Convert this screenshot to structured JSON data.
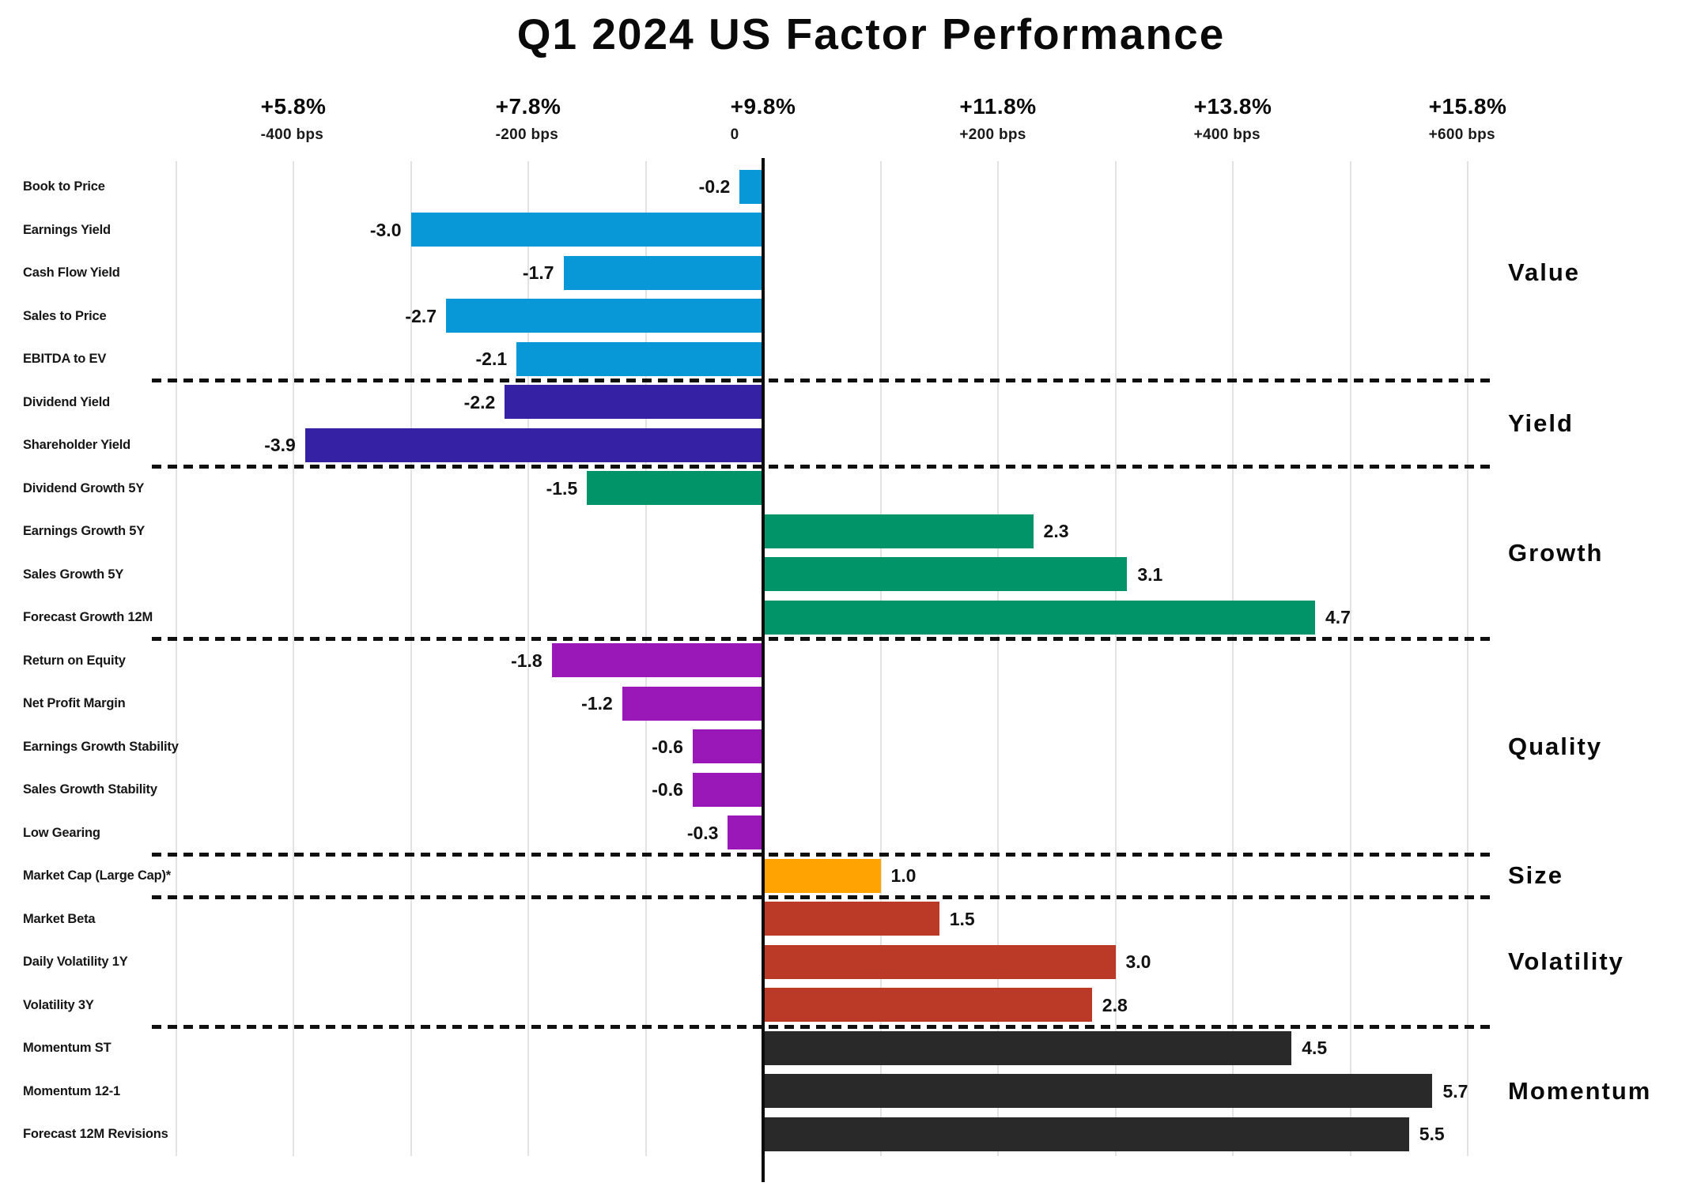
{
  "chart_data": {
    "type": "bar",
    "orientation": "horizontal",
    "title": "Q1 2024 US Factor Performance",
    "x_axis": {
      "ticks": [
        {
          "value": -4,
          "pct": "+5.8%",
          "bps": "-400 bps"
        },
        {
          "value": -2,
          "pct": "+7.8%",
          "bps": "-200 bps"
        },
        {
          "value": 0,
          "pct": "+9.8%",
          "bps": "0"
        },
        {
          "value": 2,
          "pct": "+11.8%",
          "bps": "+200 bps"
        },
        {
          "value": 4,
          "pct": "+13.8%",
          "bps": "+400 bps"
        },
        {
          "value": 6,
          "pct": "+15.8%",
          "bps": "+600 bps"
        }
      ],
      "gridline_values": [
        -5,
        -4,
        -3,
        -2,
        -1,
        1,
        2,
        3,
        4,
        5,
        6
      ],
      "bps_per_unit": 100,
      "range_units": [
        -5,
        6
      ]
    },
    "grid": "vertical light gridlines every 100 bps, solid black zero axis",
    "group_labels_position": "right",
    "group_separator_style": "black dashed horizontal lines between factor groups",
    "groups": [
      {
        "label": "Value",
        "color": "#0998d7",
        "rows": [
          {
            "label": "Book to Price",
            "value": -0.2
          },
          {
            "label": "Earnings Yield",
            "value": -3.0
          },
          {
            "label": "Cash Flow Yield",
            "value": -1.7
          },
          {
            "label": "Sales to Price",
            "value": -2.7
          },
          {
            "label": "EBITDA to EV",
            "value": -2.1
          }
        ]
      },
      {
        "label": "Yield",
        "color": "#3521a4",
        "rows": [
          {
            "label": "Dividend Yield",
            "value": -2.2
          },
          {
            "label": "Shareholder Yield",
            "value": -3.9
          }
        ]
      },
      {
        "label": "Growth",
        "color": "#009468",
        "rows": [
          {
            "label": "Dividend Growth 5Y",
            "value": -1.5
          },
          {
            "label": "Earnings Growth 5Y",
            "value": 2.3
          },
          {
            "label": "Sales Growth 5Y",
            "value": 3.1
          },
          {
            "label": "Forecast Growth 12M",
            "value": 4.7
          }
        ]
      },
      {
        "label": "Quality",
        "color": "#9a18b8",
        "rows": [
          {
            "label": "Return on Equity",
            "value": -1.8
          },
          {
            "label": "Net Profit Margin",
            "value": -1.2
          },
          {
            "label": "Earnings Growth Stability",
            "value": -0.6
          },
          {
            "label": "Sales Growth Stability",
            "value": -0.6
          },
          {
            "label": "Low Gearing",
            "value": -0.3
          }
        ]
      },
      {
        "label": "Size",
        "color": "#ffa303",
        "rows": [
          {
            "label": "Market Cap (Large Cap)*",
            "value": 1.0
          }
        ]
      },
      {
        "label": "Volatility",
        "color": "#ba3927",
        "rows": [
          {
            "label": "Market Beta",
            "value": 1.5
          },
          {
            "label": "Daily Volatility 1Y",
            "value": 3.0
          },
          {
            "label": "Volatility 3Y",
            "value": 2.8
          }
        ]
      },
      {
        "label": "Momentum",
        "color": "#292929",
        "rows": [
          {
            "label": "Momentum ST",
            "value": 4.5
          },
          {
            "label": "Momentum 12-1",
            "value": 5.7
          },
          {
            "label": "Forecast 12M Revisions",
            "value": 5.5
          }
        ]
      }
    ]
  }
}
